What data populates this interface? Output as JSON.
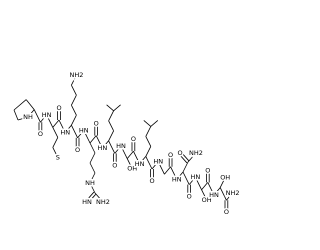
{
  "residues": [
    {
      "n": "NH",
      "o": "O",
      "side": []
    },
    {
      "n": "HN",
      "o": "O",
      "side": [
        "S"
      ]
    },
    {
      "n": "HN",
      "o": "O",
      "side": [
        "NH2"
      ]
    },
    {
      "n": "HN",
      "o": "O",
      "side": [
        "NH",
        "HN",
        "NH2"
      ]
    },
    {
      "n": "HN",
      "o": "O",
      "side": []
    },
    {
      "n": "HN",
      "o": "O",
      "side": [
        "OH"
      ]
    },
    {
      "n": "HN",
      "o": "O",
      "side": []
    },
    {
      "n": "HN",
      "o": "O",
      "side": []
    },
    {
      "n": "HN",
      "o": "O",
      "side": [
        "O",
        "NH2"
      ]
    },
    {
      "n": "HN",
      "o": "O",
      "side": [
        "OH"
      ]
    },
    {
      "n": "HN",
      "o": "O",
      "side": [
        "OH"
      ]
    }
  ],
  "terminal": "NH2"
}
